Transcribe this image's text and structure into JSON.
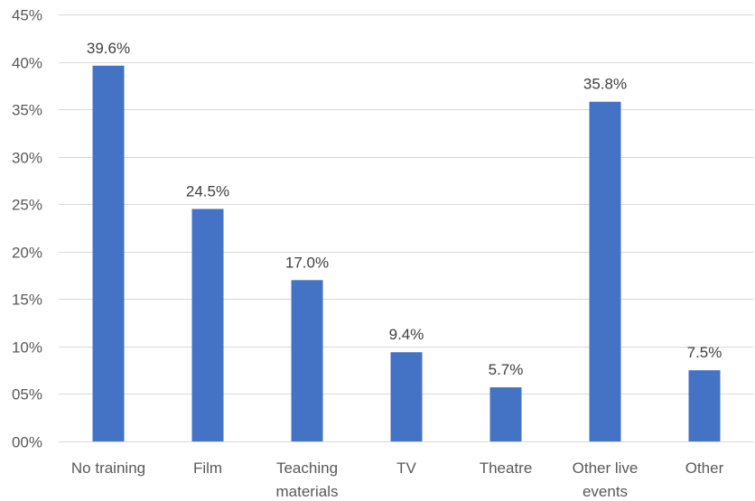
{
  "chart_data": {
    "type": "bar",
    "categories": [
      [
        "No training"
      ],
      [
        "Film"
      ],
      [
        "Teaching",
        "materials"
      ],
      [
        "TV"
      ],
      [
        "Theatre"
      ],
      [
        "Other live",
        "events"
      ],
      [
        "Other"
      ]
    ],
    "values": [
      39.6,
      24.5,
      17.0,
      9.4,
      5.7,
      35.8,
      7.5
    ],
    "data_labels": [
      "39.6%",
      "24.5%",
      "17.0%",
      "9.4%",
      "5.7%",
      "35.8%",
      "7.5%"
    ],
    "y_ticks": [
      0,
      5,
      10,
      15,
      20,
      25,
      30,
      35,
      40,
      45
    ],
    "y_tick_labels": [
      "00%",
      "05%",
      "10%",
      "15%",
      "20%",
      "25%",
      "30%",
      "35%",
      "40%",
      "45%"
    ],
    "ylim": [
      0,
      45
    ],
    "grid": true,
    "title": "",
    "xlabel": "",
    "ylabel": "",
    "bar_color": "#4472c4"
  }
}
